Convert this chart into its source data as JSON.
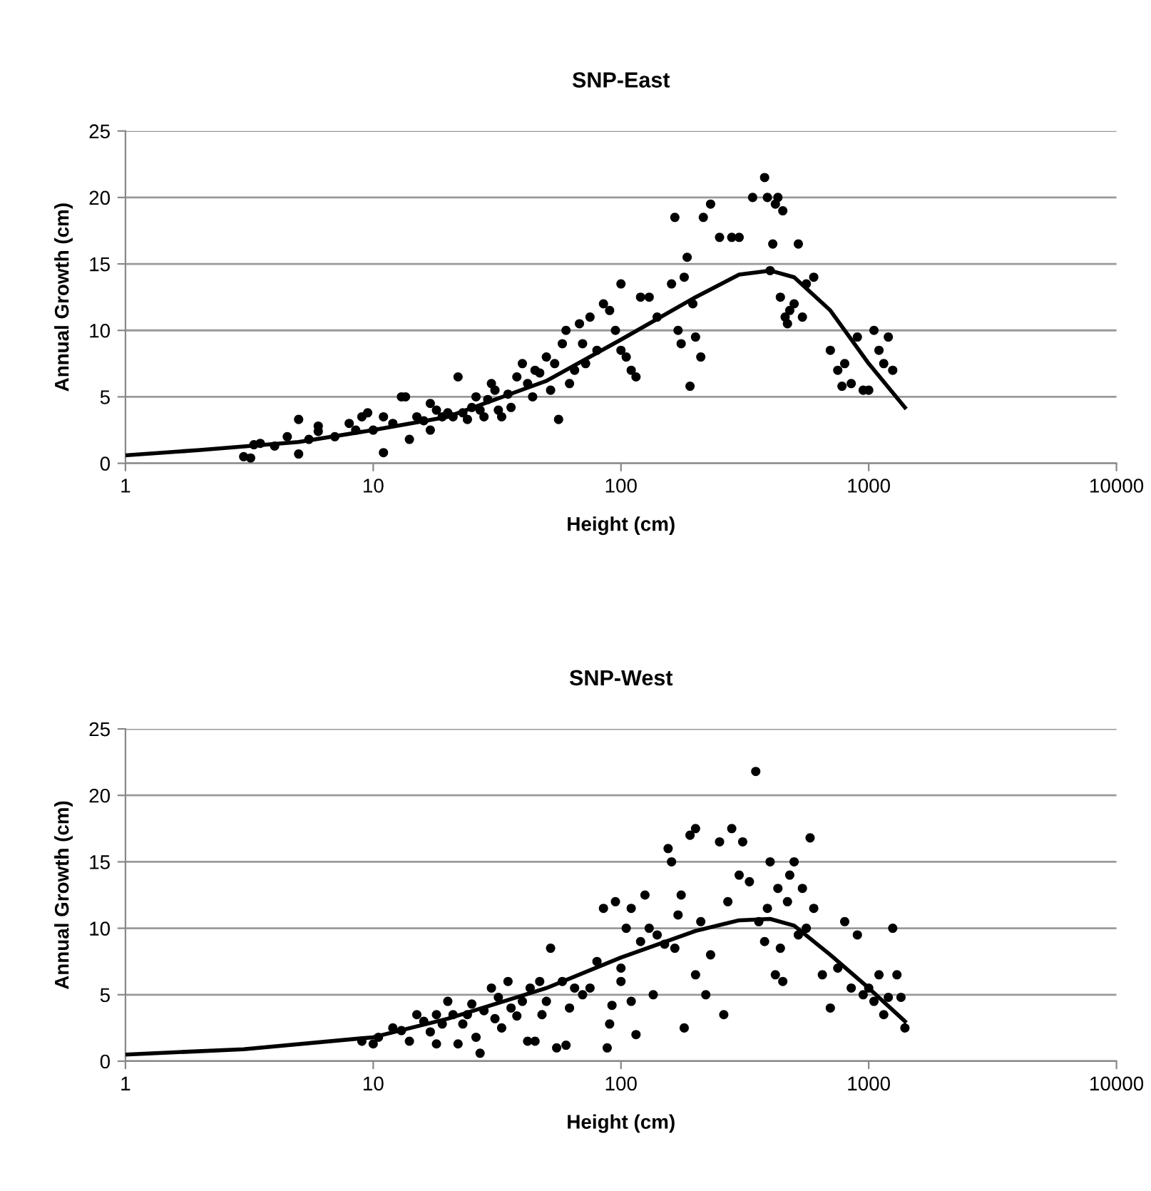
{
  "chart_data": [
    {
      "type": "scatter",
      "title": "SNP-East",
      "xlabel": "Height (cm)",
      "ylabel": "Annual Growth (cm)",
      "log": "x",
      "xlim": [
        1,
        10000
      ],
      "xticks": [
        1,
        10,
        100,
        1000,
        10000
      ],
      "ylim": [
        0,
        25
      ],
      "yticks": [
        0,
        5,
        10,
        15,
        20,
        25
      ],
      "grid": "y",
      "legend": false,
      "series": [
        {
          "marker": "circle",
          "color": "#000000",
          "x": [
            3,
            3.2,
            3.3,
            3.5,
            4,
            4.5,
            5,
            5,
            5.5,
            6,
            6,
            7,
            8,
            8.5,
            9,
            9.5,
            10,
            11,
            11,
            12,
            13,
            13.5,
            14,
            15,
            16,
            17,
            17,
            18,
            19,
            20,
            21,
            22,
            23,
            24,
            25,
            26,
            27,
            28,
            29,
            30,
            31,
            32,
            33,
            35,
            36,
            38,
            40,
            42,
            44,
            45,
            47,
            50,
            52,
            54,
            56,
            58,
            60,
            62,
            65,
            68,
            70,
            72,
            75,
            80,
            85,
            90,
            95,
            100,
            100,
            105,
            110,
            115,
            120,
            130,
            140,
            160,
            165,
            170,
            175,
            180,
            185,
            190,
            195,
            200,
            210,
            215,
            230,
            250,
            280,
            300,
            340,
            380,
            390,
            400,
            410,
            420,
            430,
            440,
            450,
            460,
            470,
            480,
            500,
            520,
            540,
            560,
            600,
            700,
            750,
            780,
            800,
            850,
            900,
            950,
            1000,
            1050,
            1100,
            1150,
            1200,
            1250
          ],
          "values": [
            0.5,
            0.4,
            1.4,
            1.5,
            1.3,
            2,
            3.3,
            0.7,
            1.8,
            2.8,
            2.4,
            2,
            3,
            2.5,
            3.5,
            3.8,
            2.5,
            3.5,
            0.8,
            3,
            5,
            5,
            1.8,
            3.5,
            3.2,
            4.5,
            2.5,
            4,
            3.5,
            3.8,
            3.5,
            6.5,
            3.8,
            3.3,
            4.2,
            5,
            4,
            3.5,
            4.8,
            6,
            5.5,
            4,
            3.5,
            5.2,
            4.2,
            6.5,
            7.5,
            6,
            5,
            7,
            6.8,
            8,
            5.5,
            7.5,
            3.3,
            9,
            10,
            6,
            7,
            10.5,
            9,
            7.5,
            11,
            8.5,
            12,
            11.5,
            10,
            13.5,
            8.5,
            8,
            7,
            6.5,
            12.5,
            12.5,
            11,
            13.5,
            18.5,
            10,
            9,
            14,
            15.5,
            5.8,
            12,
            9.5,
            8,
            18.5,
            19.5,
            17,
            17,
            17,
            20,
            21.5,
            20,
            14.5,
            16.5,
            19.5,
            20,
            12.5,
            19,
            11,
            10.5,
            11.5,
            12,
            16.5,
            11,
            13.5,
            14,
            8.5,
            7,
            5.8,
            7.5,
            6,
            9.5,
            5.5,
            5.5,
            10,
            8.5,
            7.5,
            9.5,
            7
          ]
        },
        {
          "type": "line",
          "color": "#000000",
          "line_style": "solid",
          "x": [
            1,
            2,
            5,
            10,
            20,
            50,
            100,
            200,
            300,
            400,
            500,
            700,
            1000,
            1400
          ],
          "values": [
            0.6,
            1,
            1.6,
            2.5,
            3.5,
            6.2,
            9.3,
            12.5,
            14.2,
            14.5,
            14,
            11.5,
            7.5,
            4.2
          ]
        }
      ]
    },
    {
      "type": "scatter",
      "title": "SNP-West",
      "xlabel": "Height (cm)",
      "ylabel": "Annual Growth (cm)",
      "log": "x",
      "xlim": [
        1,
        10000
      ],
      "xticks": [
        1,
        10,
        100,
        1000,
        10000
      ],
      "ylim": [
        0,
        25
      ],
      "yticks": [
        0,
        5,
        10,
        15,
        20,
        25
      ],
      "grid": "y",
      "legend": false,
      "series": [
        {
          "marker": "circle",
          "color": "#000000",
          "x": [
            9,
            10,
            10.5,
            12,
            13,
            14,
            15,
            16,
            17,
            18,
            18,
            19,
            20,
            21,
            22,
            23,
            24,
            25,
            26,
            27,
            28,
            30,
            31,
            32,
            33,
            35,
            36,
            38,
            40,
            42,
            43,
            45,
            47,
            48,
            50,
            52,
            55,
            58,
            60,
            62,
            65,
            70,
            75,
            80,
            85,
            88,
            90,
            92,
            95,
            100,
            100,
            105,
            110,
            110,
            115,
            120,
            125,
            130,
            135,
            140,
            150,
            155,
            160,
            165,
            170,
            175,
            180,
            190,
            200,
            200,
            210,
            220,
            230,
            250,
            260,
            270,
            280,
            300,
            310,
            330,
            350,
            360,
            380,
            390,
            400,
            420,
            430,
            440,
            450,
            470,
            480,
            500,
            520,
            540,
            560,
            580,
            600,
            650,
            700,
            750,
            800,
            850,
            900,
            950,
            1000,
            1050,
            1100,
            1150,
            1200,
            1250,
            1300,
            1350,
            1400
          ],
          "values": [
            1.5,
            1.3,
            1.8,
            2.5,
            2.3,
            1.5,
            3.5,
            3,
            2.2,
            1.3,
            3.5,
            2.8,
            4.5,
            3.5,
            1.3,
            2.8,
            3.5,
            4.3,
            1.8,
            0.6,
            3.8,
            5.5,
            3.2,
            4.8,
            2.5,
            6,
            4,
            3.4,
            4.5,
            1.5,
            5.5,
            1.5,
            6,
            3.5,
            4.5,
            8.5,
            1,
            6,
            1.2,
            4,
            5.5,
            5,
            5.5,
            7.5,
            11.5,
            1,
            2.8,
            4.2,
            12,
            7,
            6,
            10,
            11.5,
            4.5,
            2,
            9,
            12.5,
            10,
            5,
            9.5,
            8.8,
            16,
            15,
            8.5,
            11,
            12.5,
            2.5,
            17,
            17.5,
            6.5,
            10.5,
            5,
            8,
            16.5,
            3.5,
            12,
            17.5,
            14,
            16.5,
            13.5,
            21.8,
            10.5,
            9,
            11.5,
            15,
            6.5,
            13,
            8.5,
            6,
            12,
            14,
            15,
            9.5,
            13,
            10,
            16.8,
            11.5,
            6.5,
            4,
            7,
            10.5,
            5.5,
            9.5,
            5,
            5.5,
            4.5,
            6.5,
            3.5,
            4.8,
            10,
            6.5,
            4.8,
            2.5
          ]
        },
        {
          "type": "line",
          "color": "#000000",
          "line_style": "solid",
          "x": [
            1,
            3,
            10,
            20,
            50,
            100,
            200,
            300,
            400,
            500,
            700,
            1000,
            1400
          ],
          "values": [
            0.5,
            0.9,
            1.8,
            3.2,
            5.5,
            7.8,
            9.8,
            10.6,
            10.7,
            10.2,
            8,
            5.5,
            3
          ]
        }
      ]
    }
  ]
}
